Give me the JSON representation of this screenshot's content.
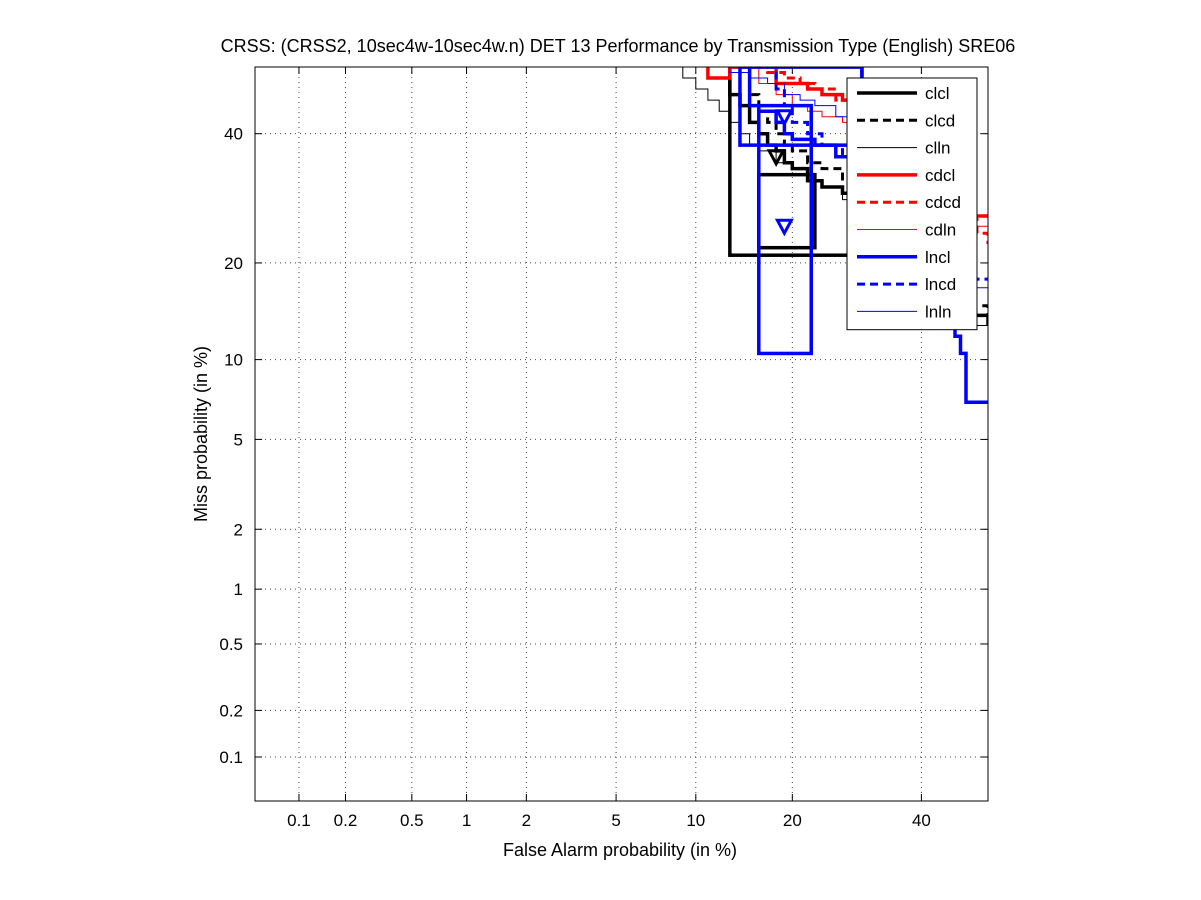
{
  "chart_data": {
    "type": "line",
    "title": "CRSS: (CRSS2, 10sec4w-10sec4w.n) DET 13 Performance by Transmission Type (English) SRE06",
    "xlabel": "False Alarm probability (in %)",
    "ylabel": "Miss probability (in %)",
    "x_scale": "probit",
    "y_scale": "probit",
    "xlim": [
      0.05,
      52
    ],
    "ylim": [
      0.05,
      52
    ],
    "x_ticks": [
      0.1,
      0.2,
      0.5,
      1,
      2,
      5,
      10,
      20,
      40
    ],
    "x_tick_labels": [
      "0.1",
      "0.2",
      "0.5",
      "1",
      "2",
      "5",
      "10",
      "20",
      "40"
    ],
    "y_ticks": [
      0.1,
      0.2,
      0.5,
      1,
      2,
      5,
      10,
      20,
      40
    ],
    "y_tick_labels": [
      "0.1",
      "0.2",
      "0.5",
      "1",
      "2",
      "5",
      "10",
      "20",
      "40"
    ],
    "grid": true,
    "legend_position": "top-right",
    "series": [
      {
        "name": "clcl",
        "color": "#000000",
        "width": 3.5,
        "dash": "solid",
        "points": [
          [
            13,
            52
          ],
          [
            13,
            47
          ],
          [
            14,
            45
          ],
          [
            15,
            42
          ],
          [
            16,
            40
          ],
          [
            17,
            38
          ],
          [
            18,
            37
          ],
          [
            19,
            35
          ],
          [
            20,
            34
          ],
          [
            22,
            32
          ],
          [
            24,
            31
          ],
          [
            27,
            30
          ],
          [
            30,
            28
          ],
          [
            33,
            26
          ],
          [
            37,
            24
          ],
          [
            40,
            22
          ],
          [
            43,
            19
          ],
          [
            46,
            16
          ],
          [
            49,
            14
          ],
          [
            52,
            13
          ]
        ],
        "marker": [
          18,
          36
        ],
        "box": [
          [
            13,
            21
          ],
          [
            30,
            52
          ]
        ],
        "box2": [
          [
            16,
            22
          ],
          [
            23,
            33
          ]
        ]
      },
      {
        "name": "clcd",
        "color": "#000000",
        "width": 3,
        "dash": "8,5",
        "points": [
          [
            14,
            52
          ],
          [
            15,
            47
          ],
          [
            16,
            44
          ],
          [
            17,
            42
          ],
          [
            18,
            40
          ],
          [
            19,
            38
          ],
          [
            20,
            37
          ],
          [
            22,
            35
          ],
          [
            24,
            34
          ],
          [
            27,
            32
          ],
          [
            30,
            31
          ],
          [
            33,
            29
          ],
          [
            37,
            27
          ],
          [
            40,
            24
          ],
          [
            43,
            21
          ],
          [
            46,
            17
          ],
          [
            49,
            15
          ],
          [
            52,
            13.5
          ]
        ]
      },
      {
        "name": "clln",
        "color": "#000000",
        "width": 1,
        "dash": "solid",
        "points": [
          [
            8.5,
            52
          ],
          [
            9,
            50
          ],
          [
            10,
            48
          ],
          [
            11,
            46
          ],
          [
            12,
            44
          ],
          [
            13,
            42
          ],
          [
            14,
            40
          ],
          [
            15,
            38
          ],
          [
            16,
            37
          ],
          [
            18,
            35
          ],
          [
            20,
            34
          ],
          [
            22,
            32
          ],
          [
            24,
            31
          ],
          [
            27,
            29
          ],
          [
            30,
            28
          ],
          [
            33,
            26
          ],
          [
            37,
            23
          ],
          [
            40,
            20
          ],
          [
            43,
            17
          ],
          [
            46,
            15
          ],
          [
            49,
            13
          ],
          [
            52,
            12
          ]
        ]
      },
      {
        "name": "cdcl",
        "color": "#ff0000",
        "width": 3.5,
        "dash": "solid",
        "points": [
          [
            11,
            52
          ],
          [
            11,
            50
          ],
          [
            13,
            50
          ],
          [
            13,
            52
          ],
          [
            17,
            52
          ],
          [
            18,
            49
          ],
          [
            20,
            49
          ],
          [
            22,
            48
          ],
          [
            24,
            47
          ],
          [
            27,
            46
          ],
          [
            30,
            44
          ],
          [
            33,
            42
          ],
          [
            37,
            39
          ],
          [
            40,
            35
          ],
          [
            43,
            31
          ],
          [
            46,
            28
          ],
          [
            49,
            26.5
          ],
          [
            52,
            26.5
          ]
        ]
      },
      {
        "name": "cdcd",
        "color": "#ff0000",
        "width": 3,
        "dash": "8,5",
        "points": [
          [
            16,
            52
          ],
          [
            17,
            51
          ],
          [
            19,
            50
          ],
          [
            21,
            49
          ],
          [
            23,
            48
          ],
          [
            26,
            46
          ],
          [
            29,
            44
          ],
          [
            32,
            41
          ],
          [
            35,
            38
          ],
          [
            38,
            34
          ],
          [
            41,
            31
          ],
          [
            44,
            28
          ],
          [
            47,
            26
          ],
          [
            50,
            24
          ],
          [
            52,
            22.5
          ]
        ]
      },
      {
        "name": "cdln",
        "color": "#ff0000",
        "width": 1,
        "dash": "solid",
        "points": [
          [
            14,
            52
          ],
          [
            16,
            49
          ],
          [
            18,
            47
          ],
          [
            20,
            45
          ],
          [
            22,
            44
          ],
          [
            24,
            43
          ],
          [
            27,
            42
          ],
          [
            30,
            41
          ],
          [
            33,
            39
          ],
          [
            37,
            36
          ],
          [
            40,
            33
          ],
          [
            43,
            30
          ],
          [
            46,
            27
          ],
          [
            49,
            25
          ],
          [
            52,
            24
          ]
        ]
      },
      {
        "name": "lncl",
        "color": "#0000ff",
        "width": 3.5,
        "dash": "solid",
        "points": [
          [
            15,
            52
          ],
          [
            15,
            45
          ],
          [
            16,
            44
          ],
          [
            18,
            42
          ],
          [
            19,
            40
          ],
          [
            20,
            39
          ],
          [
            23,
            38
          ],
          [
            26,
            36
          ],
          [
            30,
            33
          ],
          [
            34,
            29
          ],
          [
            38,
            25
          ],
          [
            42,
            20
          ],
          [
            44,
            15
          ],
          [
            46,
            12
          ],
          [
            47,
            10.5
          ],
          [
            48,
            7
          ],
          [
            52,
            7
          ]
        ],
        "marker": [
          19,
          25
        ],
        "box": [
          [
            14,
            38
          ],
          [
            30,
            52
          ]
        ],
        "box2": [
          [
            16,
            10.5
          ],
          [
            22.5,
            45
          ]
        ]
      },
      {
        "name": "lncd",
        "color": "#0000ff",
        "width": 3,
        "dash": "8,5",
        "points": [
          [
            17,
            52
          ],
          [
            18,
            48
          ],
          [
            19,
            45
          ],
          [
            20,
            42
          ],
          [
            22,
            40
          ],
          [
            24,
            38
          ],
          [
            27,
            36
          ],
          [
            30,
            34
          ],
          [
            33,
            32
          ],
          [
            37,
            29
          ],
          [
            40,
            26
          ],
          [
            43,
            22
          ],
          [
            46,
            19
          ],
          [
            49,
            18
          ],
          [
            52,
            18
          ]
        ],
        "marker": [
          19,
          43
        ]
      },
      {
        "name": "lnln",
        "color": "#0000ff",
        "width": 1,
        "dash": "solid",
        "points": [
          [
            12,
            52
          ],
          [
            13,
            51
          ],
          [
            15,
            50
          ],
          [
            17,
            49
          ],
          [
            19,
            47
          ],
          [
            21,
            46
          ],
          [
            23,
            45
          ],
          [
            26,
            43
          ],
          [
            29,
            41
          ],
          [
            32,
            39
          ],
          [
            35,
            36
          ],
          [
            38,
            32
          ],
          [
            41,
            28
          ],
          [
            44,
            23
          ],
          [
            47,
            19
          ],
          [
            50,
            17
          ],
          [
            52,
            17
          ]
        ]
      }
    ]
  }
}
